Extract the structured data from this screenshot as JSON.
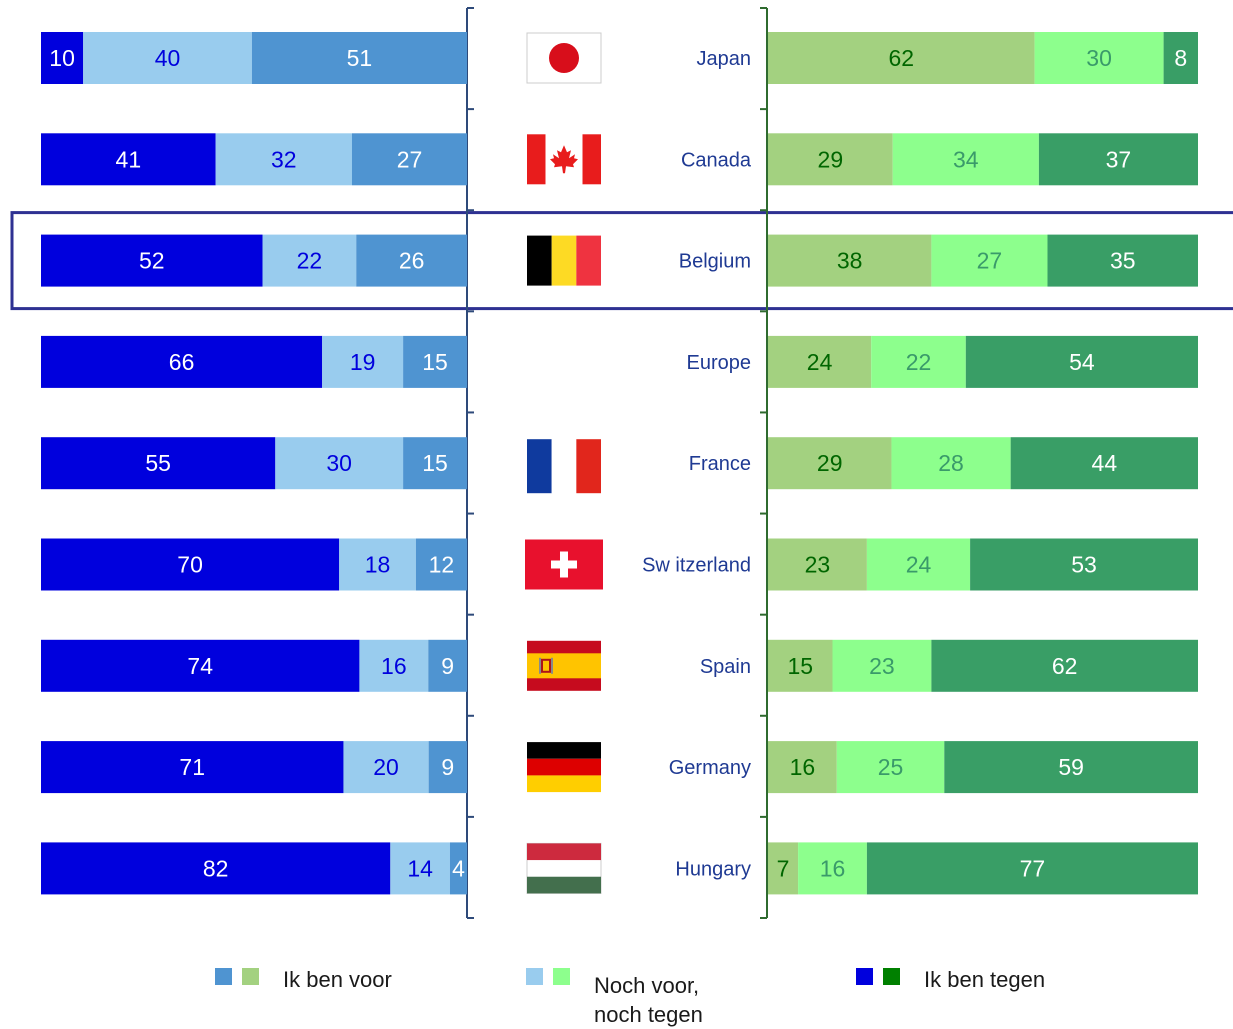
{
  "chart_data": {
    "type": "bar",
    "orientation": "horizontal",
    "stacked": true,
    "diverging": true,
    "categories": [
      "Japan",
      "Canada",
      "Belgium",
      "Europe",
      "France",
      "Sw itzerland",
      "Spain",
      "Germany",
      "Hungary"
    ],
    "highlighted_category": "Belgium",
    "left_panel": {
      "series": [
        {
          "name": "Ik ben tegen",
          "color": "#0000dd",
          "label_color": "#ffffff",
          "values": [
            10,
            41,
            52,
            66,
            55,
            70,
            74,
            71,
            82
          ]
        },
        {
          "name": "Noch voor, noch tegen",
          "color": "#99ccee",
          "label_color": "#0000dd",
          "values": [
            40,
            32,
            22,
            19,
            30,
            18,
            16,
            20,
            14
          ]
        },
        {
          "name": "Ik ben voor",
          "color": "#4f94d1",
          "label_color": "#ffffff",
          "values": [
            51,
            27,
            26,
            15,
            15,
            12,
            9,
            9,
            4
          ]
        }
      ]
    },
    "right_panel": {
      "series": [
        {
          "name": "Ik ben voor",
          "color": "#a3d180",
          "label_color": "#006600",
          "values": [
            62,
            29,
            38,
            24,
            29,
            23,
            15,
            16,
            7
          ]
        },
        {
          "name": "Noch voor, noch tegen",
          "color": "#8dff8d",
          "label_color": "#3a9a6a",
          "values": [
            30,
            34,
            27,
            22,
            28,
            24,
            23,
            25,
            16
          ]
        },
        {
          "name": "Ik ben tegen",
          "color": "#399e66",
          "label_color": "#ffffff",
          "values": [
            8,
            37,
            35,
            54,
            44,
            53,
            62,
            59,
            77
          ]
        }
      ]
    },
    "flags": [
      "japan-flag",
      "canada-flag",
      "belgium-flag",
      null,
      "france-flag",
      "switzerland-flag",
      "spain-flag",
      "germany-flag",
      "hungary-flag"
    ],
    "category_label_color": "#1f3a93",
    "legend_position": "bottom"
  },
  "legend": {
    "voor_label": "Ik ben voor",
    "neutral_label_line1": "Noch voor,",
    "neutral_label_line2": "noch tegen",
    "tegen_label": "Ik ben tegen"
  }
}
